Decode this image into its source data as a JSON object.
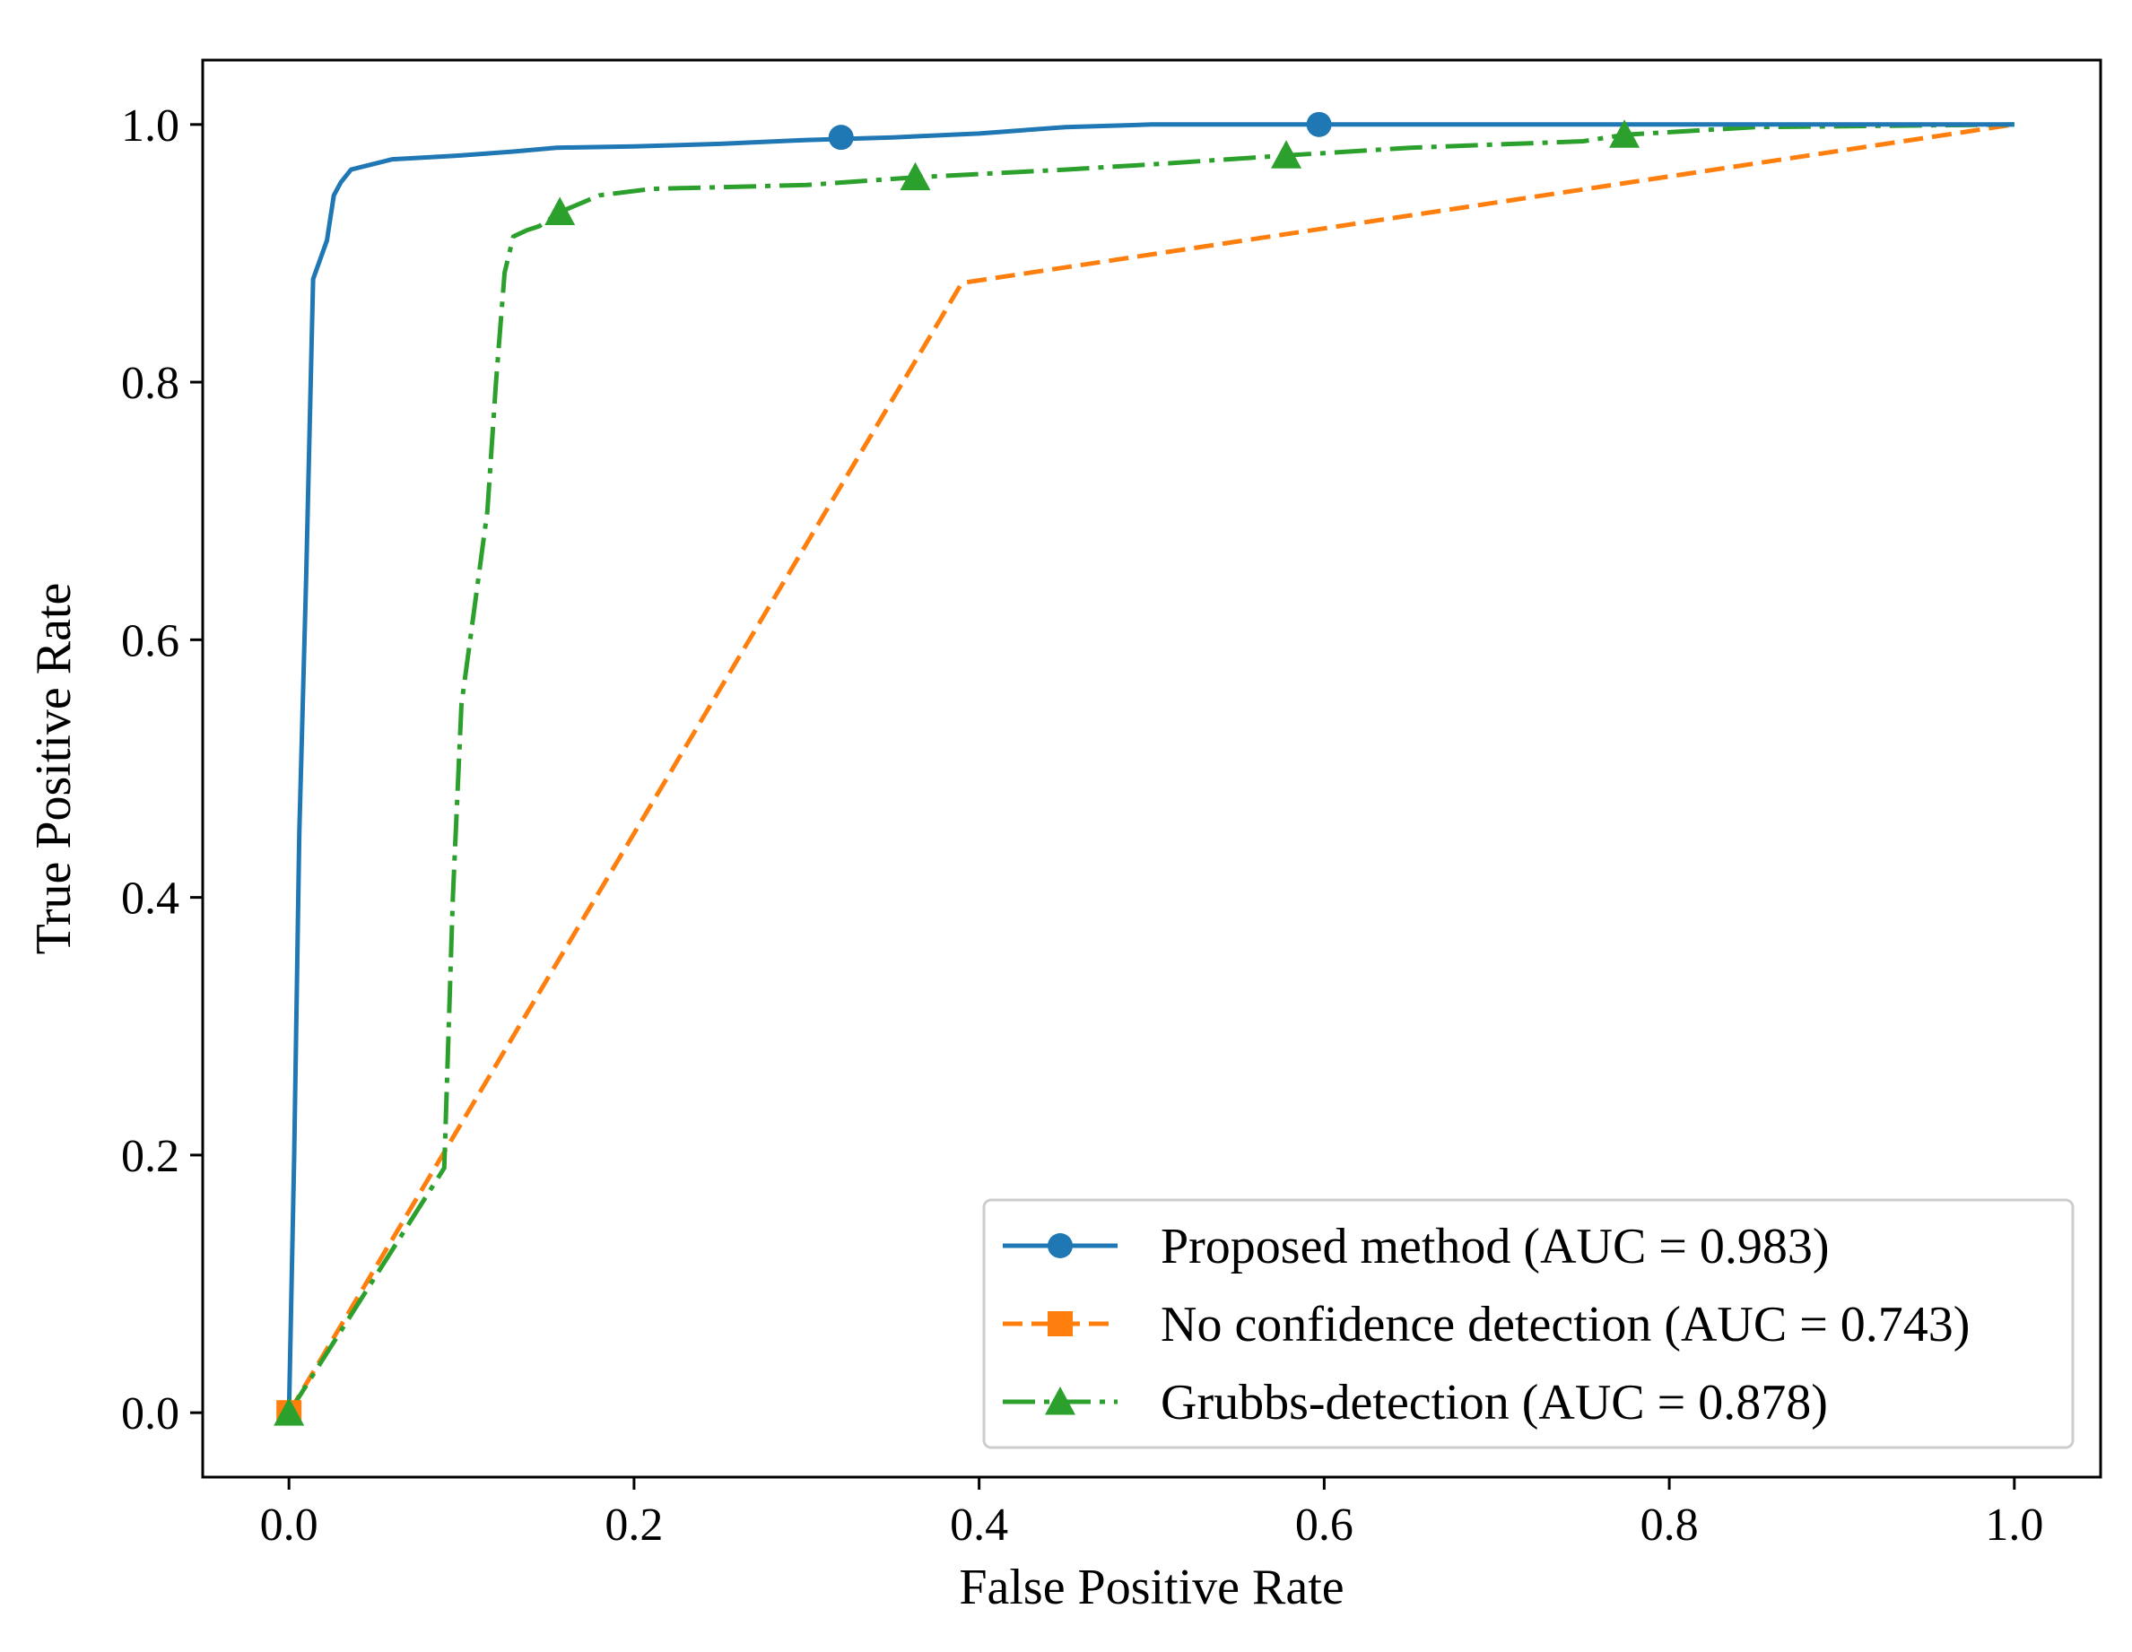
{
  "chart_data": {
    "type": "line",
    "title": "",
    "xlabel": "False Positive Rate",
    "ylabel": "True Positive Rate",
    "xlim": [
      -0.05,
      1.05
    ],
    "ylim": [
      -0.05,
      1.05
    ],
    "grid": false,
    "legend_position": "bottom-right",
    "x_ticks": [
      0.0,
      0.2,
      0.4,
      0.6,
      0.8,
      1.0
    ],
    "x_tick_labels": [
      "0.0",
      "0.2",
      "0.4",
      "0.6",
      "0.8",
      "1.0"
    ],
    "y_ticks": [
      0.0,
      0.2,
      0.4,
      0.6,
      0.8,
      1.0
    ],
    "y_tick_labels": [
      "0.0",
      "0.2",
      "0.4",
      "0.6",
      "0.8",
      "1.0"
    ],
    "series": [
      {
        "name": "Proposed method (AUC = 0.983)",
        "color": "#1f77b4",
        "line_style": "solid",
        "marker": "circle",
        "x": [
          0.0,
          0.003,
          0.006,
          0.01,
          0.014,
          0.018,
          0.022,
          0.026,
          0.03,
          0.036,
          0.06,
          0.1,
          0.13,
          0.155,
          0.2,
          0.25,
          0.3,
          0.35,
          0.4,
          0.45,
          0.5,
          0.55,
          0.6,
          0.7,
          0.8,
          0.9,
          1.0
        ],
        "y": [
          0.0,
          0.2,
          0.45,
          0.65,
          0.88,
          0.895,
          0.91,
          0.945,
          0.955,
          0.965,
          0.973,
          0.976,
          0.979,
          0.982,
          0.983,
          0.985,
          0.988,
          0.99,
          0.993,
          0.998,
          1.0,
          1.0,
          1.0,
          1.0,
          1.0,
          1.0,
          1.0
        ],
        "marker_x": [
          0.32,
          0.597
        ],
        "marker_y": [
          0.99,
          1.0
        ]
      },
      {
        "name": "No confidence detection (AUC = 0.743)",
        "color": "#ff7f0e",
        "line_style": "dashed",
        "marker": "square",
        "x": [
          0.0,
          0.39,
          1.0
        ],
        "y": [
          0.0,
          0.877,
          1.0
        ],
        "marker_x": [
          0.0
        ],
        "marker_y": [
          0.0
        ]
      },
      {
        "name": "Grubbs-detection (AUC = 0.878)",
        "color": "#2ca02c",
        "line_style": "dashdot",
        "marker": "triangle",
        "x": [
          0.0,
          0.09,
          0.095,
          0.1,
          0.105,
          0.11,
          0.115,
          0.12,
          0.125,
          0.13,
          0.138,
          0.145,
          0.157,
          0.18,
          0.21,
          0.3,
          0.363,
          0.45,
          0.5,
          0.578,
          0.65,
          0.75,
          0.774,
          0.85,
          1.0
        ],
        "y": [
          0.0,
          0.19,
          0.4,
          0.55,
          0.6,
          0.65,
          0.7,
          0.8,
          0.885,
          0.913,
          0.918,
          0.921,
          0.932,
          0.945,
          0.95,
          0.953,
          0.959,
          0.965,
          0.969,
          0.976,
          0.982,
          0.987,
          0.992,
          0.998,
          1.0
        ],
        "marker_x": [
          0.0,
          0.157,
          0.363,
          0.578,
          0.774
        ],
        "marker_y": [
          0.0,
          0.932,
          0.959,
          0.976,
          0.992
        ]
      }
    ]
  }
}
